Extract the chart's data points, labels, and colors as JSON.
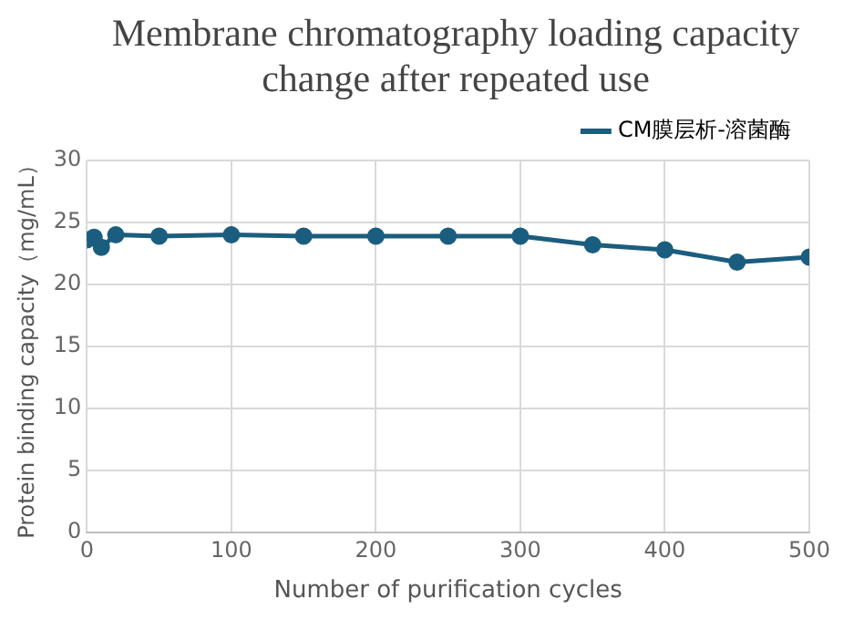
{
  "chart_data": {
    "type": "line",
    "title": "Membrane chromatography loading capacity change after repeated use",
    "xlabel": "Number of purification cycles",
    "ylabel": "Protein binding capacity（mg/mL）",
    "x": [
      0,
      5,
      10,
      20,
      50,
      100,
      150,
      200,
      250,
      300,
      350,
      400,
      450,
      500
    ],
    "series": [
      {
        "name": "CM膜层析-溶菌酶",
        "color": "#1b5d7e",
        "values": [
          23.6,
          23.8,
          23.0,
          24.0,
          23.9,
          24.0,
          23.9,
          23.9,
          23.9,
          23.9,
          23.2,
          22.8,
          21.8,
          22.2
        ]
      }
    ],
    "xlim": [
      0,
      500
    ],
    "xticks": [
      0,
      100,
      200,
      300,
      400,
      500
    ],
    "ylim": [
      0,
      30
    ],
    "yticks": [
      0,
      5,
      10,
      15,
      20,
      25,
      30
    ],
    "grid": true,
    "legend": "top right",
    "marker": "circle",
    "line_style": "solid"
  }
}
